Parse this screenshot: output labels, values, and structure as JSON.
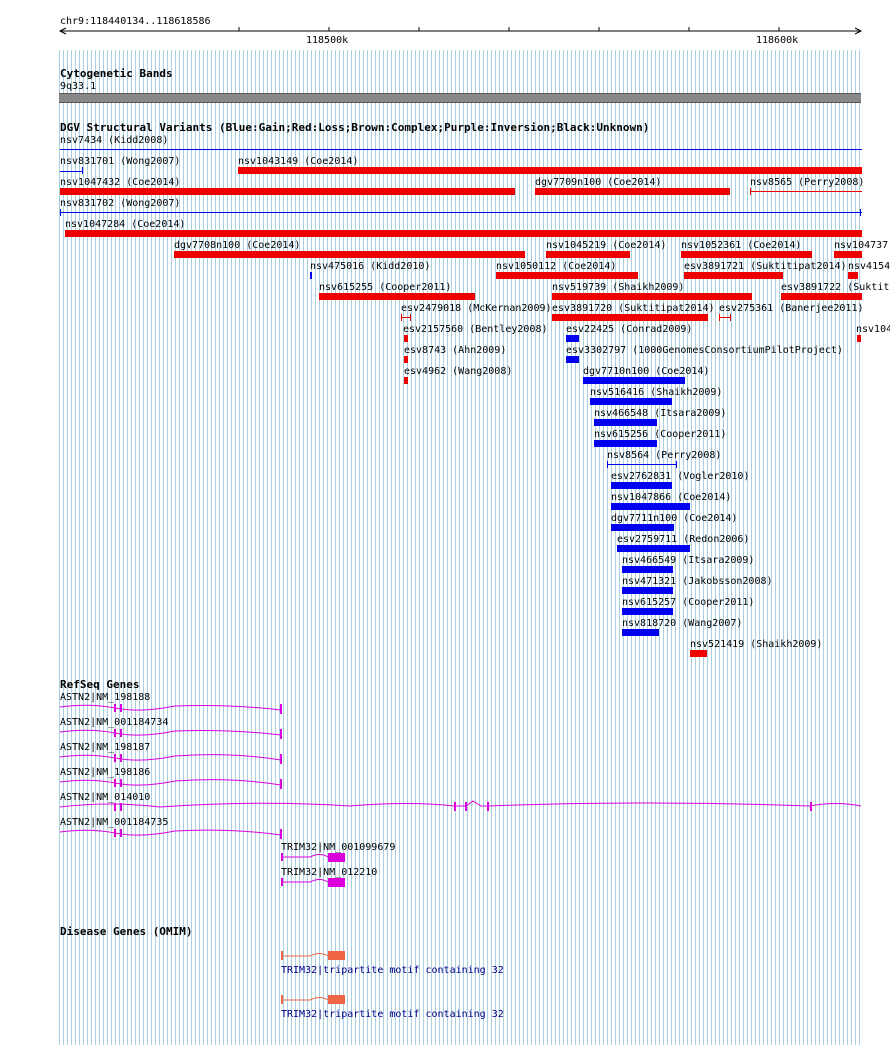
{
  "ruler": {
    "position": "chr9:118440134..118618586",
    "ticks": [
      "118500k",
      "118600k"
    ]
  },
  "tracks": {
    "cytoband": {
      "title": "Cytogenetic Bands",
      "band": "9q33.1"
    },
    "dgv": {
      "title": "DGV Structural Variants (Blue:Gain;Red:Loss;Brown:Complex;Purple:Inversion;Black:Unknown)",
      "variants": [
        {
          "label": "nsv7434 (Kidd2008)"
        },
        {
          "label": "nsv831701 (Wong2007)"
        },
        {
          "label": "nsv1043149 (Coe2014)"
        },
        {
          "label": "nsv1047432 (Coe2014)"
        },
        {
          "label": "dgv7709n100 (Coe2014)"
        },
        {
          "label": "nsv8565 (Perry2008)"
        },
        {
          "label": "nsv831702 (Wong2007)"
        },
        {
          "label": "nsv1047284 (Coe2014)"
        },
        {
          "label": "dgv7708n100 (Coe2014)"
        },
        {
          "label": "nsv1045219 (Coe2014)"
        },
        {
          "label": "nsv1052361 (Coe2014)"
        },
        {
          "label": "nsv104737("
        },
        {
          "label": "nsv475016 (Kidd2010)"
        },
        {
          "label": "nsv1050112 (Coe2014)"
        },
        {
          "label": "esv3891721 (Suktitipat2014)"
        },
        {
          "label": "nsv4154"
        },
        {
          "label": "nsv615255 (Cooper2011)"
        },
        {
          "label": "nsv519739 (Shaikh2009)"
        },
        {
          "label": "esv3891722 (Suktit"
        },
        {
          "label": "esv2479018 (McKernan2009)"
        },
        {
          "label": "esv3891720 (Suktitipat2014)"
        },
        {
          "label": "esv275361 (Banerjee2011)"
        },
        {
          "label": "esv2157560 (Bentley2008)"
        },
        {
          "label": "esv22425 (Conrad2009)"
        },
        {
          "label": "nsv104"
        },
        {
          "label": "esv8743 (Ahn2009)"
        },
        {
          "label": "esv3302797 (1000GenomesConsortiumPilotProject)"
        },
        {
          "label": "esv4962 (Wang2008)"
        },
        {
          "label": "dgv7710n100 (Coe2014)"
        },
        {
          "label": "nsv516416 (Shaikh2009)"
        },
        {
          "label": "nsv466548 (Itsara2009)"
        },
        {
          "label": "nsv615256 (Cooper2011)"
        },
        {
          "label": "nsv8564 (Perry2008)"
        },
        {
          "label": "esv2762831 (Vogler2010)"
        },
        {
          "label": "nsv1047866 (Coe2014)"
        },
        {
          "label": "dgv7711n100 (Coe2014)"
        },
        {
          "label": "esv2759711 (Redon2006)"
        },
        {
          "label": "nsv466549 (Itsara2009)"
        },
        {
          "label": "nsv471321 (Jakobsson2008)"
        },
        {
          "label": "nsv615257 (Cooper2011)"
        },
        {
          "label": "nsv818720 (Wang2007)"
        },
        {
          "label": "nsv521419 (Shaikh2009)"
        }
      ]
    },
    "refseq": {
      "title": "RefSeq Genes",
      "genes": [
        "ASTN2|NM_198188",
        "ASTN2|NM_001184734",
        "ASTN2|NM_198187",
        "ASTN2|NM_198186",
        "ASTN2|NM_014010",
        "ASTN2|NM_001184735",
        "TRIM32|NM_001099679",
        "TRIM32|NM_012210"
      ]
    },
    "omim": {
      "title": "Disease Genes (OMIM)",
      "genes": [
        "TRIM32|tripartite motif containing 32",
        "TRIM32|tripartite motif containing 32"
      ]
    }
  },
  "colors": {
    "loss": "#ee0000",
    "gain": "#0000ee",
    "gene": "#dd00dd",
    "omim": "#ee6644",
    "omim_text": "#000088"
  }
}
